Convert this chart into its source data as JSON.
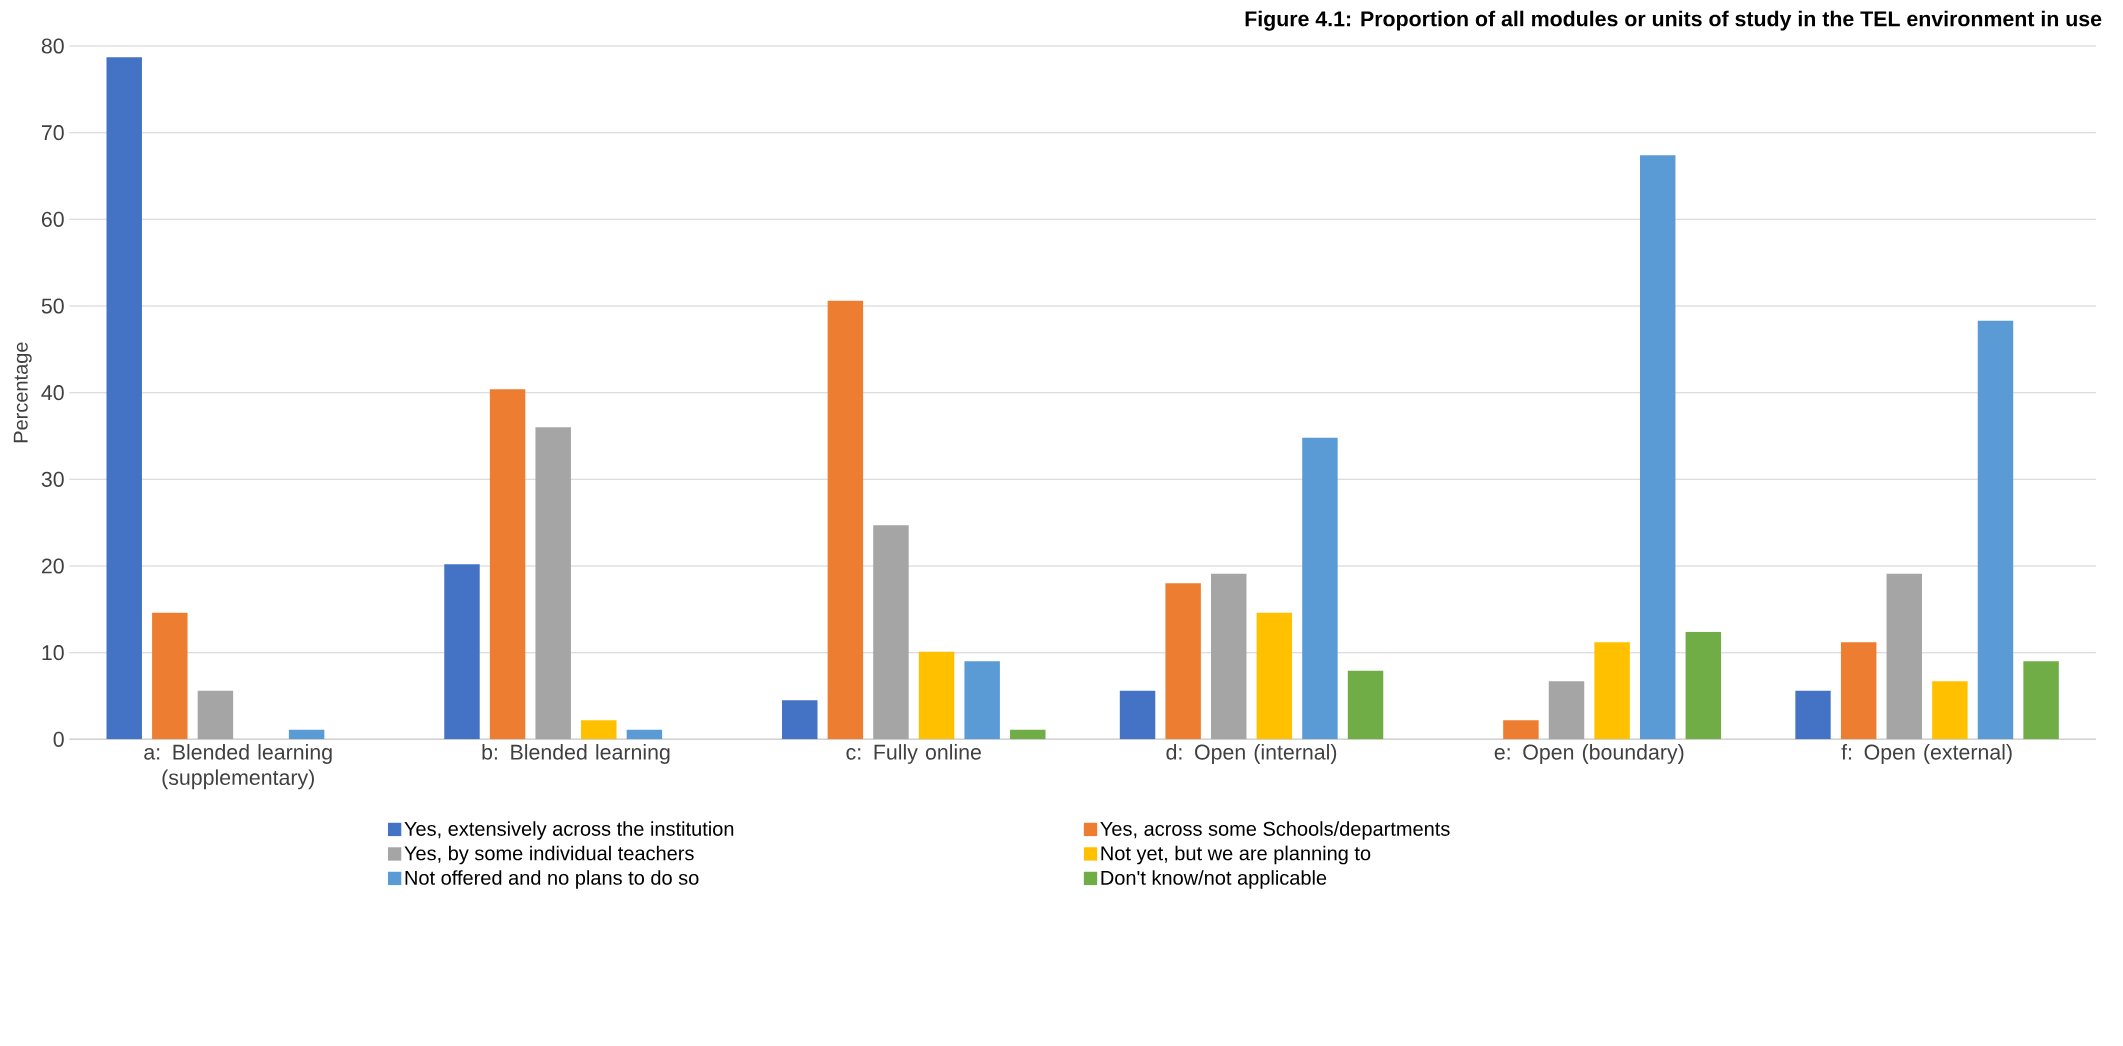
{
  "chart_data": {
    "type": "bar",
    "title": "Figure 4.1: Proportion of all modules or units of study in the TEL environment in use",
    "ylabel": "Percentage",
    "categories": [
      "a: Blended learning (supplementary)",
      "b: Blended learning",
      "c: Fully online",
      "d: Open (internal)",
      "e: Open (boundary)",
      "f: Open (external)"
    ],
    "series": [
      {
        "name": "Yes, extensively across the institution",
        "color": "#4472c4",
        "values": [
          78.7,
          20.2,
          4.5,
          5.6,
          0,
          5.6
        ]
      },
      {
        "name": "Yes, across some Schools/departments",
        "color": "#ed7d31",
        "values": [
          14.6,
          40.4,
          50.6,
          18.0,
          2.2,
          11.2
        ]
      },
      {
        "name": "Yes, by some individual teachers",
        "color": "#a5a5a5",
        "values": [
          5.6,
          36.0,
          24.7,
          19.1,
          6.7,
          19.1
        ]
      },
      {
        "name": "Not yet, but we are planning to",
        "color": "#ffc000",
        "values": [
          0,
          2.2,
          10.1,
          14.6,
          11.2,
          6.7
        ]
      },
      {
        "name": "Not offered and no plans to do so",
        "color": "#5b9bd5",
        "values": [
          1.1,
          1.1,
          9.0,
          34.8,
          67.4,
          48.3
        ]
      },
      {
        "name": "Don't know/not applicable",
        "color": "#70ad47",
        "values": [
          0,
          0,
          1.1,
          7.9,
          12.4,
          9.0
        ]
      }
    ],
    "ylim": [
      0,
      80
    ],
    "yticks": [
      0,
      10,
      20,
      30,
      40,
      50,
      60,
      70,
      80
    ],
    "grid": "y",
    "legend": "bottom"
  }
}
